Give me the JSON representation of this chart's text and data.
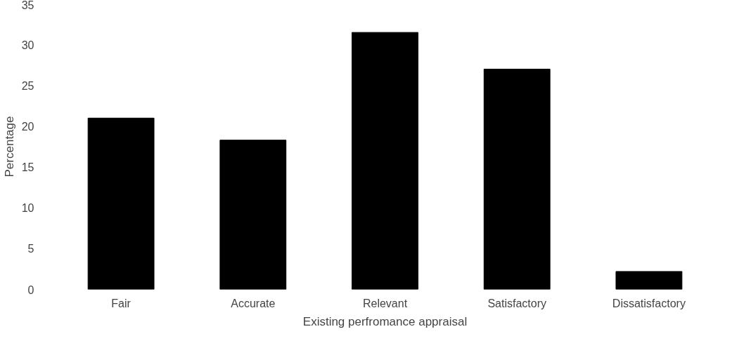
{
  "chart_data": {
    "type": "bar",
    "xlabel": "Existing perfromance appraisal",
    "ylabel": "Percentage",
    "categories": [
      "Fair",
      "Accurate",
      "Relevant",
      "Satisfactory",
      "Dissatisfactory"
    ],
    "values": [
      21,
      18.3,
      31.5,
      27,
      2.2
    ],
    "color": "#000000",
    "ylim": [
      0,
      35
    ],
    "yticks": [
      0,
      5,
      10,
      15,
      20,
      25,
      30,
      35
    ],
    "grid": false
  }
}
